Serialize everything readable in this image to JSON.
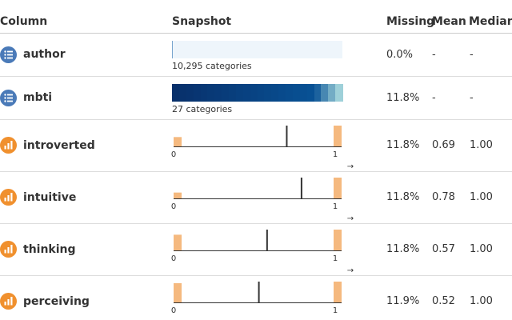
{
  "header": {
    "column": "Column",
    "snapshot": "Snapshot",
    "missing": "Missing",
    "mean": "Mean",
    "median": "Median"
  },
  "colors": {
    "categorical_icon": "#4a7ab8",
    "numeric_icon": "#f0902e",
    "histogram_bar": "#f5b97f",
    "mean_line": "#333333"
  },
  "rows": [
    {
      "name": "author",
      "type": "categorical",
      "icon": "list-icon",
      "snapshot_label": "10,295 categories",
      "categories": 10295,
      "missing": "0.0%",
      "mean": "-",
      "median": "-"
    },
    {
      "name": "mbti",
      "type": "categorical",
      "icon": "list-icon",
      "snapshot_label": "27 categories",
      "categories": 27,
      "missing": "11.8%",
      "mean": "-",
      "median": "-"
    },
    {
      "name": "introverted",
      "type": "numeric",
      "icon": "bar-chart-icon",
      "tick_min": "0",
      "tick_max": "1",
      "arrow": "→",
      "hist_fractions": [
        0.31,
        0.69
      ],
      "mean_value": 0.69,
      "missing": "11.8%",
      "mean": "0.69",
      "median": "1.00"
    },
    {
      "name": "intuitive",
      "type": "numeric",
      "icon": "bar-chart-icon",
      "tick_min": "0",
      "tick_max": "1",
      "arrow": "→",
      "hist_fractions": [
        0.22,
        0.78
      ],
      "mean_value": 0.78,
      "missing": "11.8%",
      "mean": "0.78",
      "median": "1.00"
    },
    {
      "name": "thinking",
      "type": "numeric",
      "icon": "bar-chart-icon",
      "tick_min": "0",
      "tick_max": "1",
      "arrow": "→",
      "hist_fractions": [
        0.43,
        0.57
      ],
      "mean_value": 0.57,
      "missing": "11.8%",
      "mean": "0.57",
      "median": "1.00"
    },
    {
      "name": "perceiving",
      "type": "numeric",
      "icon": "bar-chart-icon",
      "tick_min": "0",
      "tick_max": "1",
      "arrow": "→",
      "hist_fractions": [
        0.48,
        0.52
      ],
      "mean_value": 0.52,
      "missing": "11.9%",
      "mean": "0.52",
      "median": "1.00"
    }
  ]
}
